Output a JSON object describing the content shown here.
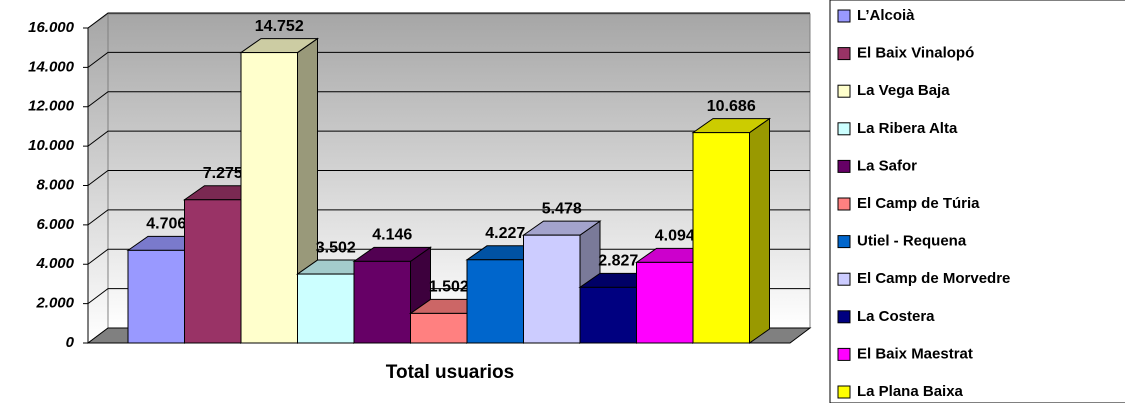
{
  "chart_data": {
    "type": "bar3d",
    "categories": [
      "Total usuarios"
    ],
    "series": [
      {
        "name": "L’Alcoià",
        "color": "#9999ff",
        "values": [
          4706
        ],
        "value_labels": [
          "4.706"
        ]
      },
      {
        "name": "El Baix Vinalopó",
        "color": "#993366",
        "values": [
          7275
        ],
        "value_labels": [
          "7.275"
        ]
      },
      {
        "name": "La Vega Baja",
        "color": "#ffffcc",
        "values": [
          14752
        ],
        "value_labels": [
          "14.752"
        ]
      },
      {
        "name": "La Ribera Alta",
        "color": "#ccffff",
        "values": [
          3502
        ],
        "value_labels": [
          "3.502"
        ]
      },
      {
        "name": "La Safor",
        "color": "#660066",
        "values": [
          4146
        ],
        "value_labels": [
          "4.146"
        ]
      },
      {
        "name": "El Camp de Túria",
        "color": "#ff8080",
        "values": [
          1502
        ],
        "value_labels": [
          "1.502"
        ]
      },
      {
        "name": "Utiel - Requena",
        "color": "#0066cc",
        "values": [
          4227
        ],
        "value_labels": [
          "4.227"
        ]
      },
      {
        "name": "El Camp de Morvedre",
        "color": "#ccccff",
        "values": [
          5478
        ],
        "value_labels": [
          "5.478"
        ]
      },
      {
        "name": "La Costera",
        "color": "#000080",
        "values": [
          2827
        ],
        "value_labels": [
          "2.827"
        ]
      },
      {
        "name": "El Baix Maestrat",
        "color": "#ff00ff",
        "values": [
          4094
        ],
        "value_labels": [
          "4.094"
        ]
      },
      {
        "name": "La Plana Baixa",
        "color": "#ffff00",
        "values": [
          10686
        ],
        "value_labels": [
          "10.686"
        ]
      }
    ],
    "ylim": [
      0,
      16000
    ],
    "yticks": [
      0,
      {
        "value": 2000,
        "label": "2.000"
      },
      {
        "value": 4000,
        "label": "4.000"
      },
      {
        "value": 6000,
        "label": "6.000"
      },
      {
        "value": 8000,
        "label": "8.000"
      },
      {
        "value": 10000,
        "label": "10.000"
      },
      {
        "value": 12000,
        "label": "12.000"
      },
      {
        "value": 14000,
        "label": "14.000"
      },
      {
        "value": 16000,
        "label": "16.000"
      }
    ],
    "grid": true,
    "legend": "right"
  }
}
